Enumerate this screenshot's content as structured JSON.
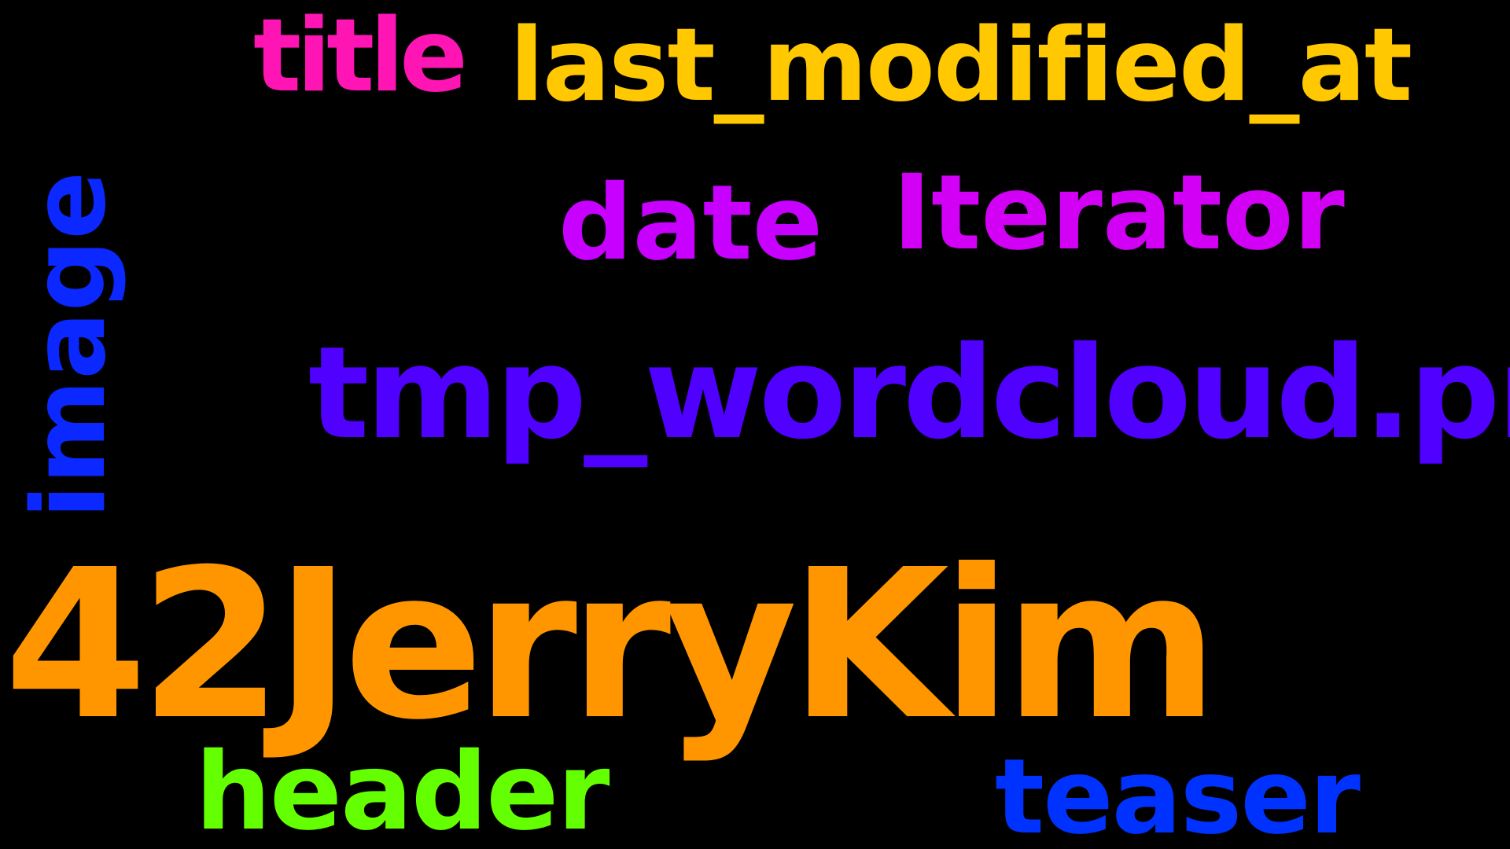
{
  "words": [
    {
      "key": "title",
      "text": "title",
      "color": "#FF14B4"
    },
    {
      "key": "last_modified_at",
      "text": "last_modified_at",
      "color": "#FFC800"
    },
    {
      "key": "date",
      "text": "date",
      "color": "#C800FF"
    },
    {
      "key": "iterator",
      "text": "Iterator",
      "color": "#D200F5"
    },
    {
      "key": "tmp",
      "text": "tmp_wordcloud.png",
      "color": "#5000FF"
    },
    {
      "key": "image",
      "text": "image",
      "color": "#0A28FF"
    },
    {
      "key": "main",
      "text": "42JerryKim",
      "color": "#FF9600"
    },
    {
      "key": "header",
      "text": "header",
      "color": "#64FF00"
    },
    {
      "key": "teaser",
      "text": "teaser",
      "color": "#0032FF"
    }
  ]
}
